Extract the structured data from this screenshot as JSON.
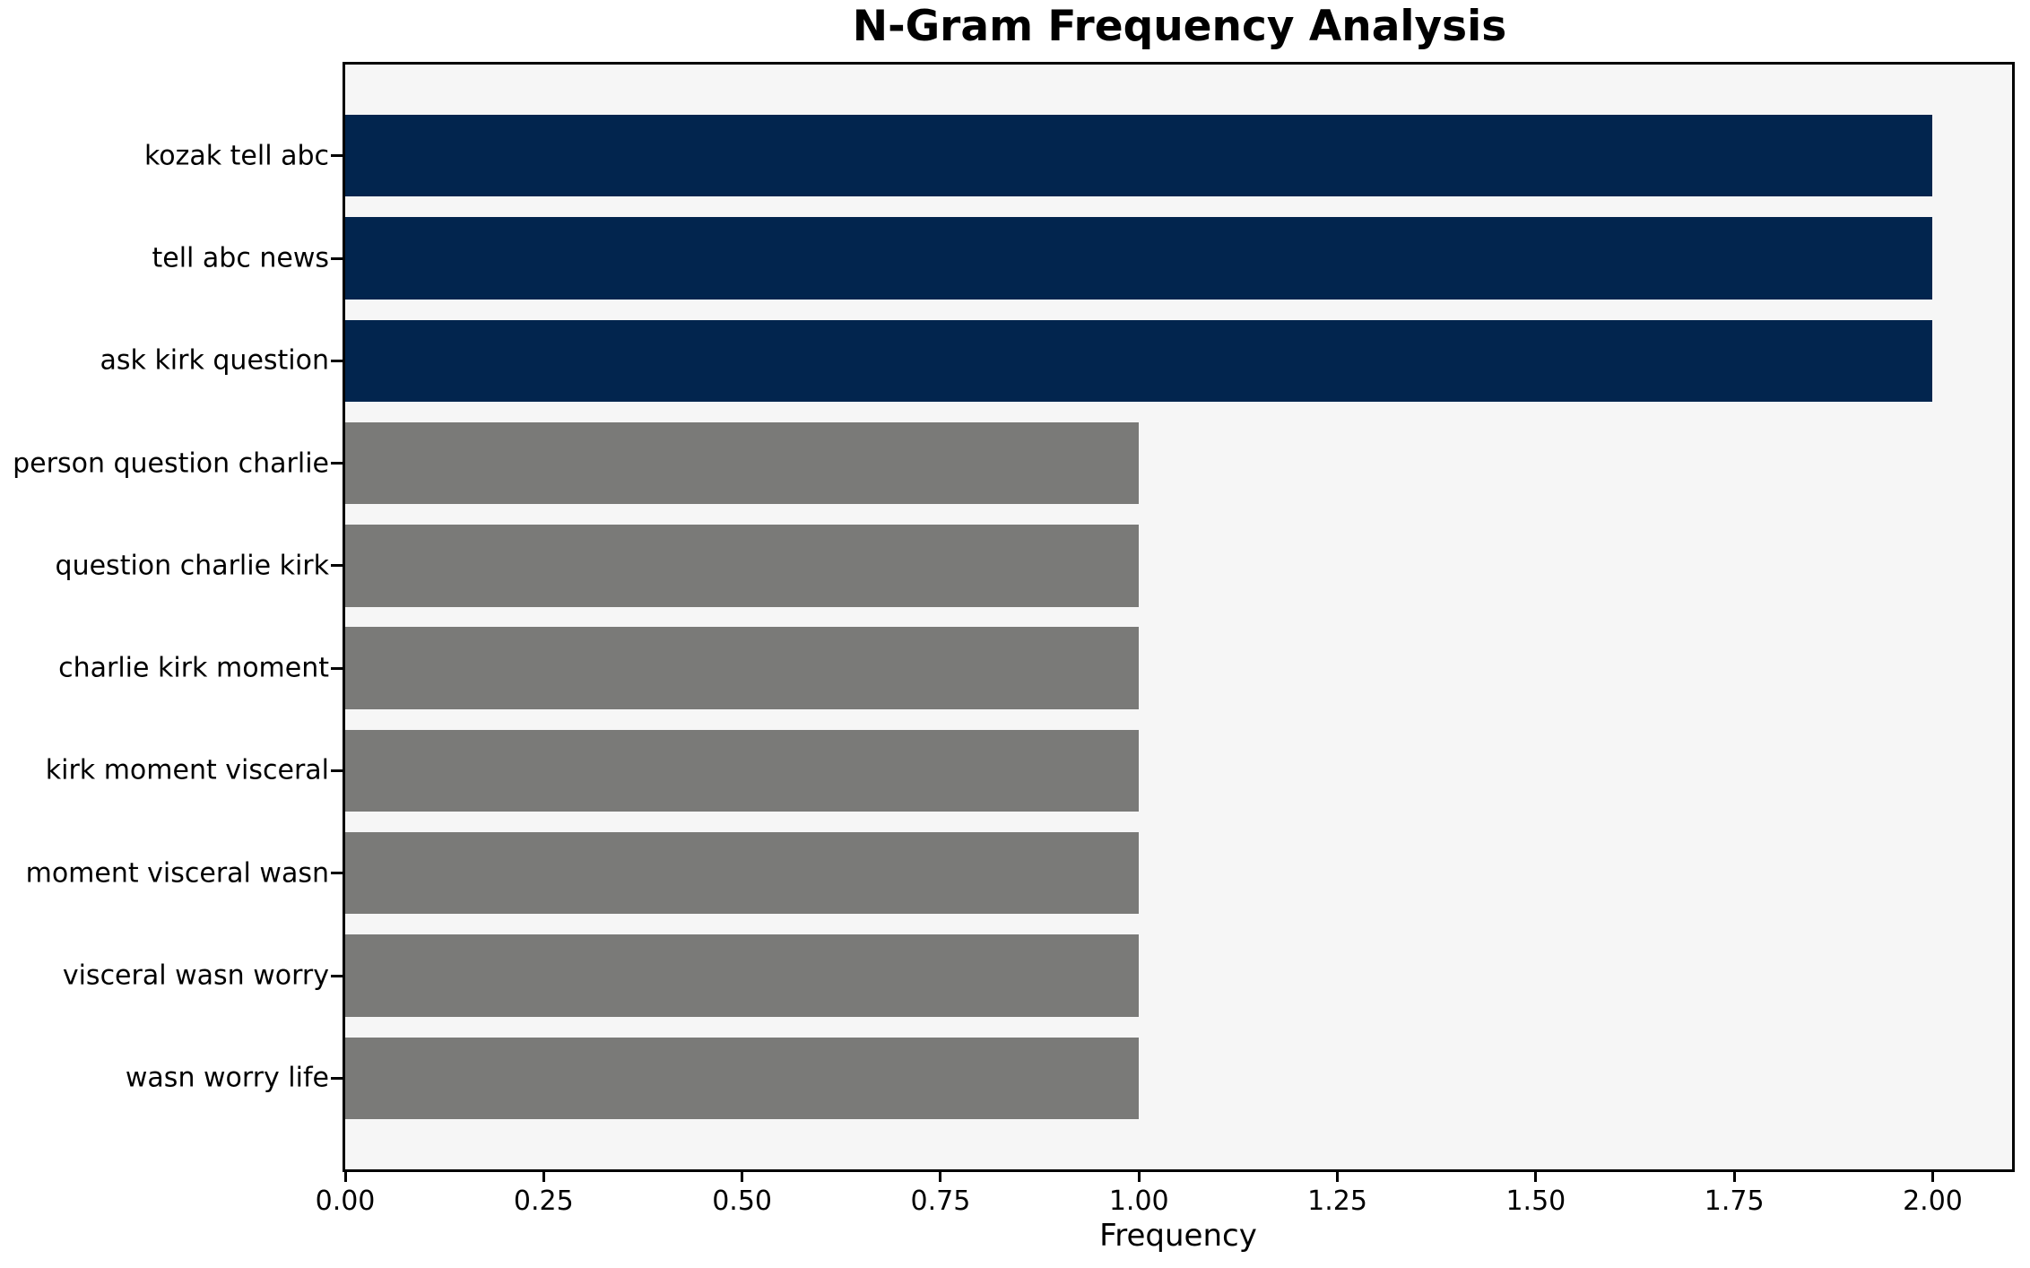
{
  "figure": {
    "title": "N-Gram Frequency Analysis",
    "xlabel": "Frequency"
  },
  "chart_data": {
    "type": "bar",
    "orientation": "horizontal",
    "title": "N-Gram Frequency Analysis",
    "xlabel": "Frequency",
    "ylabel": "",
    "categories": [
      "kozak tell abc",
      "tell abc news",
      "ask kirk question",
      "person question charlie",
      "question charlie kirk",
      "charlie kirk moment",
      "kirk moment visceral",
      "moment visceral wasn",
      "visceral wasn worry",
      "wasn worry life"
    ],
    "values": [
      2,
      2,
      2,
      1,
      1,
      1,
      1,
      1,
      1,
      1
    ],
    "bar_colors": [
      "#02254e",
      "#02254e",
      "#02254e",
      "#7a7a78",
      "#7a7a78",
      "#7a7a78",
      "#7a7a78",
      "#7a7a78",
      "#7a7a78",
      "#7a7a78"
    ],
    "xlim": [
      0,
      2.1
    ],
    "xticks": [
      {
        "value": 0.0,
        "label": "0.00"
      },
      {
        "value": 0.25,
        "label": "0.25"
      },
      {
        "value": 0.5,
        "label": "0.50"
      },
      {
        "value": 0.75,
        "label": "0.75"
      },
      {
        "value": 1.0,
        "label": "1.00"
      },
      {
        "value": 1.25,
        "label": "1.25"
      },
      {
        "value": 1.5,
        "label": "1.50"
      },
      {
        "value": 1.75,
        "label": "1.75"
      },
      {
        "value": 2.0,
        "label": "2.00"
      }
    ],
    "grid": false,
    "legend": "none",
    "colors": {
      "highlight": "#02254e",
      "base": "#7a7a78",
      "plot_background": "#f6f6f6",
      "figure_background": "#ffffff",
      "spine": "#000000"
    }
  }
}
